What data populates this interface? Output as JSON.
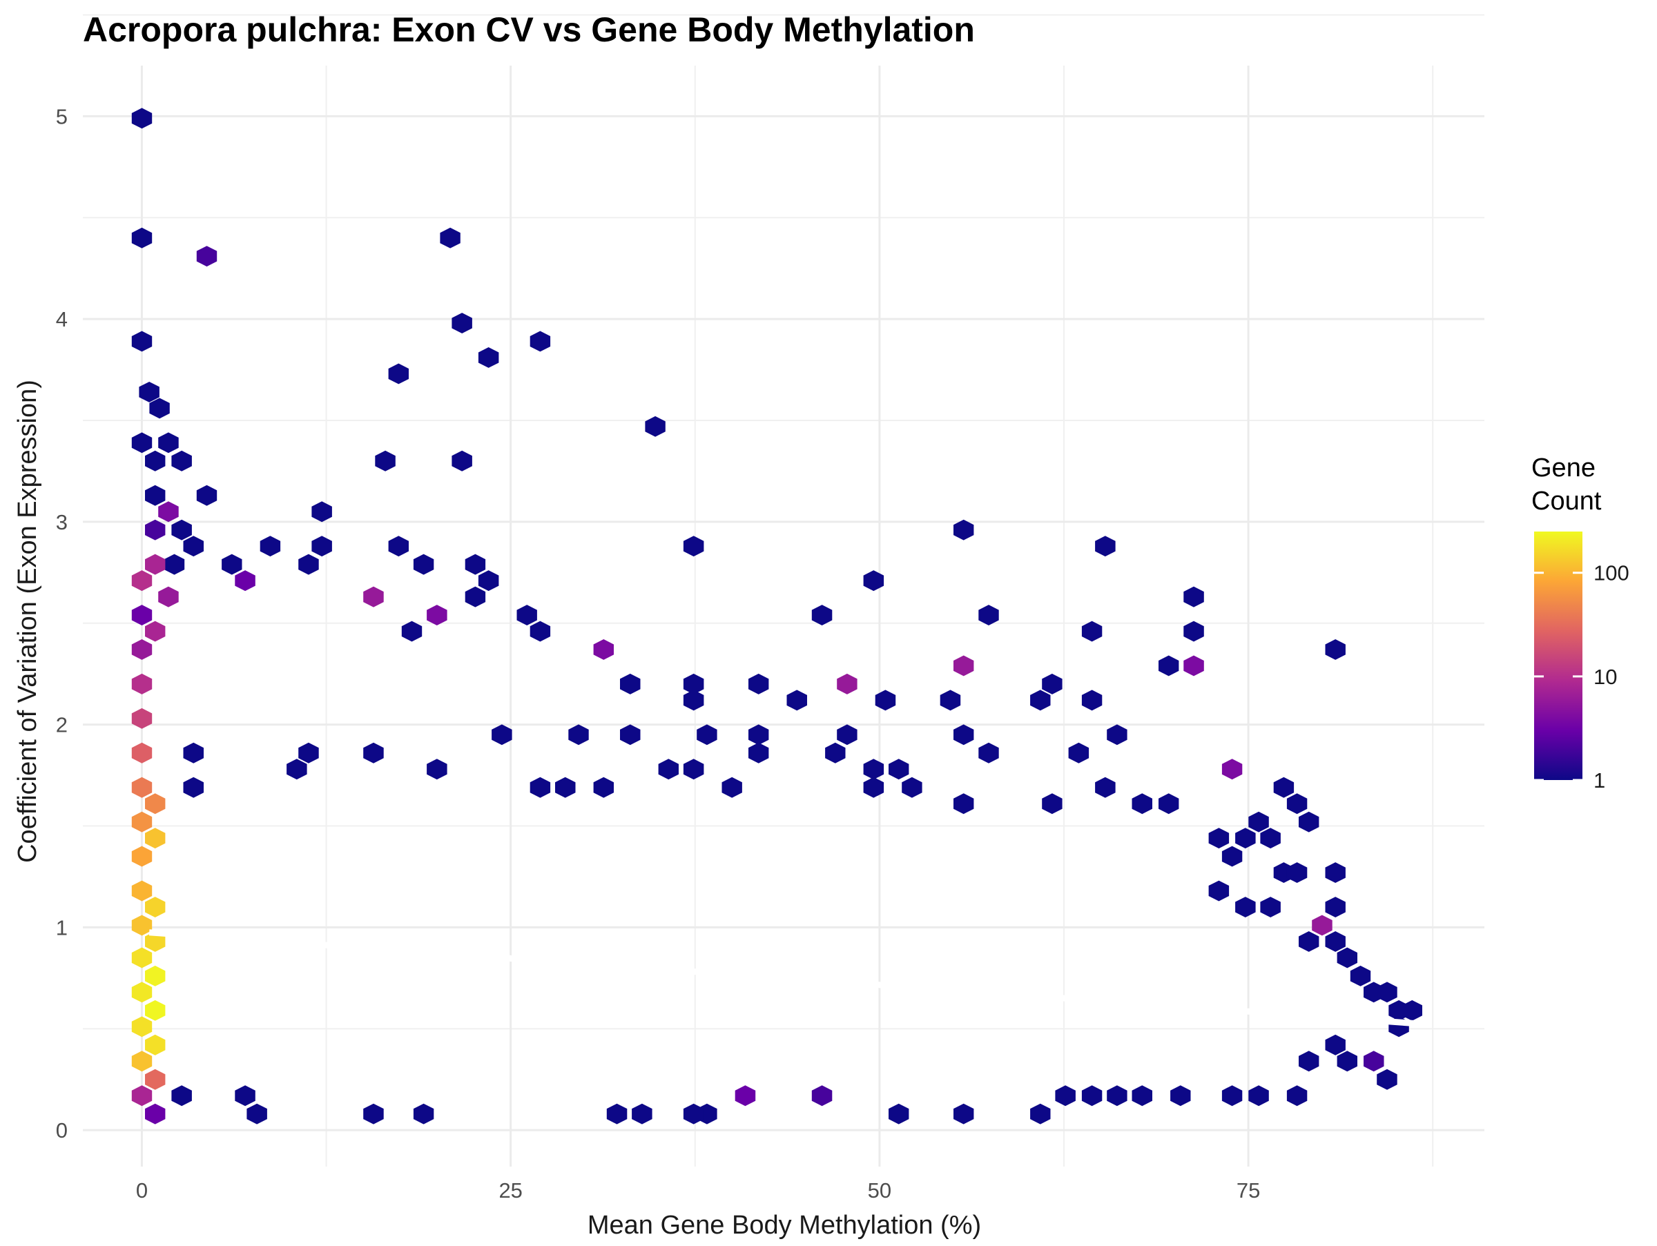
{
  "chart_data": {
    "type": "heatmap",
    "subtype": "hexbin",
    "title": "Acropora pulchra: Exon CV vs Gene Body Methylation",
    "xlabel": "Mean Gene Body Methylation (%)",
    "ylabel": "Coefficient of Variation (Exon Expression)",
    "xlim": [
      -4,
      91
    ],
    "ylim": [
      -0.18,
      5.25
    ],
    "x_ticks": [
      0,
      25,
      50,
      75
    ],
    "y_ticks": [
      0,
      1,
      2,
      3,
      4,
      5
    ],
    "grid": true,
    "legend": {
      "title_lines": [
        "Gene",
        "Count"
      ],
      "scale": "log10",
      "ticks": [
        1,
        10,
        100
      ],
      "range": [
        1,
        250
      ],
      "placement": "right",
      "palette": [
        "#0d0887",
        "#6a00a8",
        "#b12a90",
        "#e16462",
        "#fca636",
        "#f0f921"
      ]
    },
    "hexbin": {
      "x_centers": "0 to 86 step ~1.74 (alternate rows shifted by half)",
      "y_centers": "0.085 to 5.0 step ~0.085"
    },
    "bins": [
      [
        0.0,
        4.99,
        1
      ],
      [
        0.0,
        4.4,
        1
      ],
      [
        4.4,
        4.31,
        2
      ],
      [
        0.0,
        3.89,
        1
      ],
      [
        0.5,
        3.64,
        1
      ],
      [
        1.2,
        3.56,
        1
      ],
      [
        0.0,
        3.39,
        1
      ],
      [
        1.8,
        3.39,
        1
      ],
      [
        0.9,
        3.3,
        1
      ],
      [
        2.7,
        3.3,
        1
      ],
      [
        0.9,
        3.13,
        1
      ],
      [
        4.4,
        3.13,
        1
      ],
      [
        1.8,
        3.05,
        4
      ],
      [
        0.9,
        2.96,
        2
      ],
      [
        2.7,
        2.96,
        1
      ],
      [
        2.2,
        2.79,
        1
      ],
      [
        3.5,
        2.88,
        1
      ],
      [
        0.0,
        2.71,
        10
      ],
      [
        0.9,
        2.79,
        8
      ],
      [
        0.0,
        2.54,
        3
      ],
      [
        1.8,
        2.63,
        6
      ],
      [
        0.0,
        2.37,
        6
      ],
      [
        0.9,
        2.46,
        8
      ],
      [
        0.0,
        2.2,
        10
      ],
      [
        0.0,
        2.03,
        15
      ],
      [
        0.0,
        1.86,
        25
      ],
      [
        0.0,
        1.69,
        40
      ],
      [
        0.0,
        1.52,
        60
      ],
      [
        0.9,
        1.61,
        50
      ],
      [
        0.0,
        1.35,
        80
      ],
      [
        0.9,
        1.44,
        120
      ],
      [
        0.0,
        1.18,
        100
      ],
      [
        0.9,
        1.1,
        150
      ],
      [
        0.0,
        1.01,
        120
      ],
      [
        0.0,
        0.85,
        180
      ],
      [
        0.9,
        0.93,
        160
      ],
      [
        0.0,
        0.68,
        200
      ],
      [
        0.9,
        0.76,
        230
      ],
      [
        0.0,
        0.51,
        180
      ],
      [
        0.9,
        0.59,
        240
      ],
      [
        0.0,
        0.34,
        120
      ],
      [
        0.9,
        0.42,
        180
      ],
      [
        0.0,
        0.17,
        8
      ],
      [
        0.9,
        0.25,
        30
      ],
      [
        0.9,
        0.08,
        3
      ],
      [
        8.7,
        2.88,
        1
      ],
      [
        6.1,
        2.79,
        1
      ],
      [
        7.0,
        2.71,
        3
      ],
      [
        11.3,
        2.79,
        1
      ],
      [
        12.2,
        2.88,
        1
      ],
      [
        12.2,
        3.05,
        1
      ],
      [
        17.4,
        2.88,
        1
      ],
      [
        19.1,
        2.79,
        1
      ],
      [
        22.6,
        2.79,
        1
      ],
      [
        23.5,
        2.71,
        1
      ],
      [
        22.6,
        2.63,
        1
      ],
      [
        16.5,
        3.3,
        1
      ],
      [
        17.4,
        3.73,
        1
      ],
      [
        21.7,
        3.3,
        1
      ],
      [
        20.9,
        4.4,
        1
      ],
      [
        21.7,
        3.98,
        1
      ],
      [
        23.5,
        3.81,
        1
      ],
      [
        27.0,
        3.89,
        1
      ],
      [
        34.8,
        3.47,
        1
      ],
      [
        37.4,
        2.88,
        1
      ],
      [
        20.0,
        2.54,
        4
      ],
      [
        26.1,
        2.54,
        1
      ],
      [
        27.0,
        2.46,
        1
      ],
      [
        18.3,
        2.46,
        1
      ],
      [
        31.3,
        2.37,
        4
      ],
      [
        33.1,
        2.2,
        1
      ],
      [
        15.7,
        2.63,
        6
      ],
      [
        49.6,
        2.71,
        1
      ],
      [
        55.7,
        2.96,
        1
      ],
      [
        65.3,
        2.88,
        1
      ],
      [
        57.4,
        2.54,
        1
      ],
      [
        46.1,
        2.54,
        1
      ],
      [
        64.4,
        2.46,
        1
      ],
      [
        71.3,
        2.63,
        1
      ],
      [
        71.3,
        2.46,
        1
      ],
      [
        69.6,
        2.29,
        1
      ],
      [
        71.3,
        2.29,
        4
      ],
      [
        80.9,
        2.37,
        1
      ],
      [
        55.7,
        2.29,
        6
      ],
      [
        47.8,
        2.2,
        6
      ],
      [
        37.4,
        2.2,
        1
      ],
      [
        41.8,
        2.2,
        1
      ],
      [
        50.4,
        2.12,
        1
      ],
      [
        54.8,
        2.12,
        1
      ],
      [
        60.9,
        2.12,
        1
      ],
      [
        61.7,
        2.2,
        1
      ],
      [
        64.4,
        2.12,
        1
      ],
      [
        37.4,
        2.12,
        1
      ],
      [
        44.4,
        2.12,
        1
      ],
      [
        73.9,
        1.78,
        4
      ],
      [
        77.4,
        1.69,
        1
      ],
      [
        78.3,
        1.61,
        1
      ],
      [
        79.1,
        1.52,
        1
      ],
      [
        80.9,
        1.27,
        1
      ],
      [
        80.9,
        1.1,
        1
      ],
      [
        80.0,
        1.01,
        6
      ],
      [
        3.5,
        1.86,
        1
      ],
      [
        3.5,
        1.69,
        1
      ],
      [
        10.5,
        1.78,
        1
      ],
      [
        11.3,
        1.86,
        1
      ],
      [
        15.7,
        1.86,
        1
      ],
      [
        20.0,
        1.78,
        1
      ],
      [
        27.0,
        1.69,
        1
      ],
      [
        28.7,
        1.69,
        1
      ],
      [
        31.3,
        1.69,
        1
      ],
      [
        35.7,
        1.78,
        1
      ],
      [
        37.4,
        1.78,
        1
      ],
      [
        40.0,
        1.69,
        1
      ],
      [
        41.8,
        1.86,
        1
      ],
      [
        47.0,
        1.86,
        1
      ],
      [
        49.6,
        1.78,
        1
      ],
      [
        49.6,
        1.69,
        1
      ],
      [
        51.3,
        1.78,
        1
      ],
      [
        52.2,
        1.69,
        1
      ],
      [
        55.7,
        1.61,
        1
      ],
      [
        61.7,
        1.61,
        1
      ],
      [
        65.3,
        1.69,
        1
      ],
      [
        67.8,
        1.61,
        1
      ],
      [
        69.6,
        1.61,
        1
      ],
      [
        55.7,
        1.95,
        1
      ],
      [
        57.4,
        1.86,
        1
      ],
      [
        63.5,
        1.86,
        1
      ],
      [
        66.1,
        1.95,
        1
      ],
      [
        47.8,
        1.95,
        1
      ],
      [
        41.8,
        1.95,
        1
      ],
      [
        38.3,
        1.95,
        1
      ],
      [
        33.1,
        1.95,
        1
      ],
      [
        29.6,
        1.95,
        1
      ],
      [
        24.4,
        1.95,
        1
      ],
      [
        73.0,
        1.44,
        1
      ],
      [
        74.8,
        1.44,
        1
      ],
      [
        76.5,
        1.44,
        1
      ],
      [
        75.7,
        1.52,
        1
      ],
      [
        73.9,
        1.35,
        1
      ],
      [
        73.0,
        1.18,
        1
      ],
      [
        74.8,
        1.1,
        1
      ],
      [
        76.5,
        1.1,
        1
      ],
      [
        77.4,
        1.27,
        1
      ],
      [
        78.3,
        1.27,
        1
      ],
      [
        79.1,
        0.93,
        1
      ],
      [
        80.9,
        0.93,
        1
      ],
      [
        81.7,
        0.85,
        1
      ],
      [
        82.6,
        0.76,
        1
      ],
      [
        83.5,
        0.68,
        1
      ],
      [
        84.4,
        0.68,
        1
      ],
      [
        85.2,
        0.59,
        1
      ],
      [
        86.1,
        0.59,
        1
      ],
      [
        85.2,
        0.51,
        1
      ],
      [
        84.4,
        0.25,
        1
      ],
      [
        83.5,
        0.34,
        2
      ],
      [
        81.7,
        0.34,
        1
      ],
      [
        80.9,
        0.42,
        1
      ],
      [
        79.1,
        0.34,
        1
      ],
      [
        78.3,
        0.17,
        1
      ],
      [
        75.7,
        0.17,
        1
      ],
      [
        73.9,
        0.17,
        1
      ],
      [
        70.4,
        0.17,
        1
      ],
      [
        66.1,
        0.17,
        1
      ],
      [
        64.4,
        0.17,
        1
      ],
      [
        62.6,
        0.17,
        1
      ],
      [
        67.8,
        0.17,
        1
      ],
      [
        60.9,
        0.08,
        1
      ],
      [
        55.7,
        0.08,
        1
      ],
      [
        51.3,
        0.08,
        1
      ],
      [
        46.1,
        0.17,
        2
      ],
      [
        40.9,
        0.17,
        3
      ],
      [
        38.3,
        0.08,
        1
      ],
      [
        37.4,
        0.08,
        1
      ],
      [
        33.9,
        0.08,
        1
      ],
      [
        32.2,
        0.08,
        1
      ],
      [
        19.1,
        0.08,
        1
      ],
      [
        15.7,
        0.08,
        1
      ],
      [
        7.8,
        0.08,
        1
      ],
      [
        2.7,
        0.17,
        1
      ],
      [
        7.0,
        0.17,
        1
      ]
    ],
    "trend_line": {
      "x": [
        0.5,
        86.5
      ],
      "y": [
        0.975,
        0.525
      ]
    }
  }
}
